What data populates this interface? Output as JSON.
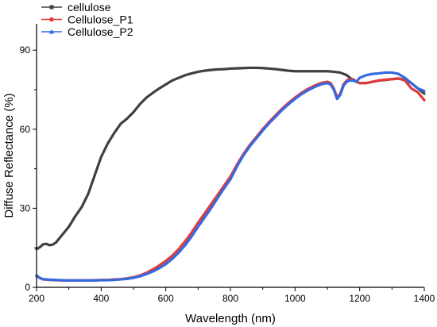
{
  "chart_data": {
    "type": "line",
    "title": "",
    "xlabel": "Wavelength (nm)",
    "ylabel": "Diffuse Reflectance (%)",
    "xlim": [
      200,
      1400
    ],
    "ylim": [
      0,
      100
    ],
    "xticks": [
      200,
      400,
      600,
      800,
      1000,
      1200,
      1400
    ],
    "yticks": [
      0,
      30,
      60,
      90
    ],
    "grid": false,
    "legend_position": "top-left",
    "series": [
      {
        "name": "cellulose",
        "color": "#404040",
        "marker": "square",
        "points": [
          [
            200,
            14.5
          ],
          [
            210,
            15.2
          ],
          [
            220,
            16.3
          ],
          [
            230,
            16.5
          ],
          [
            240,
            16.0
          ],
          [
            250,
            16.2
          ],
          [
            260,
            17.0
          ],
          [
            270,
            18.5
          ],
          [
            280,
            20.0
          ],
          [
            300,
            23.0
          ],
          [
            320,
            27.0
          ],
          [
            340,
            30.5
          ],
          [
            360,
            35.5
          ],
          [
            380,
            42.5
          ],
          [
            400,
            49.5
          ],
          [
            420,
            54.5
          ],
          [
            440,
            58.5
          ],
          [
            460,
            62.0
          ],
          [
            480,
            64.0
          ],
          [
            500,
            66.5
          ],
          [
            520,
            69.5
          ],
          [
            540,
            72.0
          ],
          [
            560,
            73.8
          ],
          [
            580,
            75.5
          ],
          [
            600,
            77.0
          ],
          [
            620,
            78.5
          ],
          [
            640,
            79.5
          ],
          [
            660,
            80.5
          ],
          [
            680,
            81.2
          ],
          [
            700,
            81.8
          ],
          [
            720,
            82.2
          ],
          [
            740,
            82.5
          ],
          [
            760,
            82.7
          ],
          [
            780,
            82.8
          ],
          [
            800,
            83.0
          ],
          [
            820,
            83.1
          ],
          [
            840,
            83.2
          ],
          [
            860,
            83.3
          ],
          [
            880,
            83.3
          ],
          [
            900,
            83.2
          ],
          [
            920,
            83.0
          ],
          [
            940,
            82.8
          ],
          [
            960,
            82.5
          ],
          [
            980,
            82.2
          ],
          [
            1000,
            82.0
          ],
          [
            1020,
            82.0
          ],
          [
            1040,
            82.0
          ],
          [
            1060,
            82.0
          ],
          [
            1080,
            82.0
          ],
          [
            1100,
            82.0
          ],
          [
            1120,
            81.8
          ],
          [
            1140,
            81.5
          ],
          [
            1160,
            80.5
          ],
          [
            1180,
            78.5
          ],
          [
            1200,
            77.5
          ],
          [
            1220,
            77.5
          ],
          [
            1240,
            78.0
          ],
          [
            1260,
            78.5
          ],
          [
            1280,
            78.7
          ],
          [
            1300,
            79.0
          ],
          [
            1320,
            79.2
          ],
          [
            1340,
            78.8
          ],
          [
            1360,
            77.5
          ],
          [
            1380,
            75.5
          ],
          [
            1400,
            73.5
          ]
        ]
      },
      {
        "name": "Cellulose_P1",
        "color": "#e03a3a",
        "marker": "circle",
        "points": [
          [
            200,
            4.3
          ],
          [
            210,
            3.5
          ],
          [
            220,
            3.0
          ],
          [
            240,
            2.8
          ],
          [
            260,
            2.7
          ],
          [
            280,
            2.6
          ],
          [
            300,
            2.6
          ],
          [
            320,
            2.6
          ],
          [
            340,
            2.6
          ],
          [
            360,
            2.6
          ],
          [
            380,
            2.7
          ],
          [
            400,
            2.8
          ],
          [
            420,
            2.8
          ],
          [
            440,
            3.0
          ],
          [
            460,
            3.1
          ],
          [
            480,
            3.4
          ],
          [
            500,
            3.8
          ],
          [
            520,
            4.5
          ],
          [
            540,
            5.5
          ],
          [
            560,
            6.8
          ],
          [
            580,
            8.3
          ],
          [
            600,
            10.0
          ],
          [
            620,
            12.0
          ],
          [
            640,
            14.5
          ],
          [
            660,
            17.5
          ],
          [
            680,
            20.8
          ],
          [
            700,
            24.5
          ],
          [
            720,
            28.0
          ],
          [
            740,
            31.5
          ],
          [
            760,
            35.0
          ],
          [
            780,
            38.5
          ],
          [
            800,
            42.0
          ],
          [
            820,
            46.5
          ],
          [
            840,
            50.5
          ],
          [
            860,
            54.0
          ],
          [
            880,
            57.0
          ],
          [
            900,
            60.0
          ],
          [
            920,
            62.8
          ],
          [
            940,
            65.3
          ],
          [
            960,
            67.8
          ],
          [
            980,
            70.0
          ],
          [
            1000,
            72.0
          ],
          [
            1020,
            73.8
          ],
          [
            1040,
            75.3
          ],
          [
            1060,
            76.5
          ],
          [
            1080,
            77.5
          ],
          [
            1100,
            78.0
          ],
          [
            1110,
            77.5
          ],
          [
            1120,
            75.5
          ],
          [
            1130,
            72.0
          ],
          [
            1140,
            73.5
          ],
          [
            1150,
            77.0
          ],
          [
            1160,
            78.5
          ],
          [
            1170,
            79.0
          ],
          [
            1180,
            79.0
          ],
          [
            1190,
            78.0
          ],
          [
            1200,
            77.5
          ],
          [
            1220,
            77.5
          ],
          [
            1240,
            78.0
          ],
          [
            1260,
            78.5
          ],
          [
            1280,
            78.8
          ],
          [
            1300,
            79.0
          ],
          [
            1320,
            79.3
          ],
          [
            1340,
            78.5
          ],
          [
            1360,
            75.5
          ],
          [
            1380,
            74.0
          ],
          [
            1400,
            71.0
          ]
        ]
      },
      {
        "name": "Cellulose_P2",
        "color": "#3569e0",
        "marker": "triangle",
        "points": [
          [
            200,
            4.5
          ],
          [
            210,
            3.6
          ],
          [
            220,
            3.1
          ],
          [
            240,
            2.9
          ],
          [
            260,
            2.8
          ],
          [
            280,
            2.7
          ],
          [
            300,
            2.6
          ],
          [
            320,
            2.6
          ],
          [
            340,
            2.6
          ],
          [
            360,
            2.6
          ],
          [
            380,
            2.6
          ],
          [
            400,
            2.7
          ],
          [
            420,
            2.7
          ],
          [
            440,
            2.8
          ],
          [
            460,
            3.0
          ],
          [
            480,
            3.2
          ],
          [
            500,
            3.6
          ],
          [
            520,
            4.2
          ],
          [
            540,
            5.0
          ],
          [
            560,
            6.0
          ],
          [
            580,
            7.3
          ],
          [
            600,
            8.8
          ],
          [
            620,
            10.8
          ],
          [
            640,
            13.2
          ],
          [
            660,
            16.0
          ],
          [
            680,
            19.3
          ],
          [
            700,
            23.0
          ],
          [
            720,
            26.5
          ],
          [
            740,
            30.0
          ],
          [
            760,
            33.8
          ],
          [
            780,
            37.5
          ],
          [
            800,
            41.0
          ],
          [
            820,
            45.8
          ],
          [
            840,
            50.0
          ],
          [
            860,
            53.5
          ],
          [
            880,
            56.5
          ],
          [
            900,
            59.5
          ],
          [
            920,
            62.3
          ],
          [
            940,
            64.8
          ],
          [
            960,
            67.3
          ],
          [
            980,
            69.5
          ],
          [
            1000,
            71.5
          ],
          [
            1020,
            73.3
          ],
          [
            1040,
            74.8
          ],
          [
            1060,
            76.0
          ],
          [
            1080,
            77.0
          ],
          [
            1100,
            77.5
          ],
          [
            1110,
            77.0
          ],
          [
            1120,
            75.0
          ],
          [
            1130,
            71.5
          ],
          [
            1140,
            73.0
          ],
          [
            1150,
            76.5
          ],
          [
            1160,
            78.0
          ],
          [
            1170,
            78.5
          ],
          [
            1180,
            78.5
          ],
          [
            1190,
            78.0
          ],
          [
            1200,
            79.5
          ],
          [
            1220,
            80.5
          ],
          [
            1240,
            81.0
          ],
          [
            1260,
            81.2
          ],
          [
            1280,
            81.5
          ],
          [
            1300,
            81.5
          ],
          [
            1320,
            81.0
          ],
          [
            1340,
            79.5
          ],
          [
            1360,
            77.5
          ],
          [
            1380,
            75.5
          ],
          [
            1400,
            74.5
          ]
        ]
      }
    ]
  }
}
